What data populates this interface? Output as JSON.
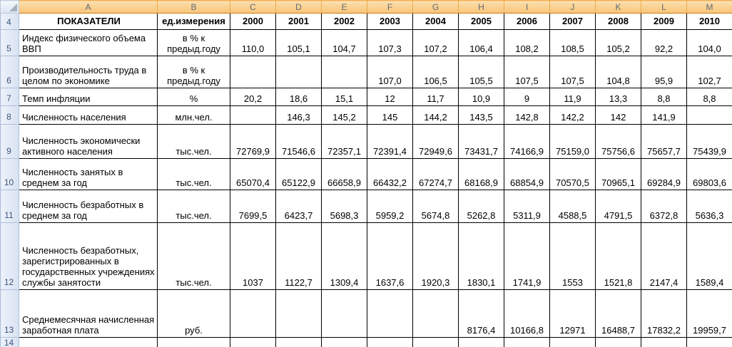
{
  "colors": {
    "column_header_fill": "#F9C578",
    "column_header_fill_light": "#FCDFAE",
    "column_header_text": "#606A75",
    "row_gutter_fill": "#D9E2F2",
    "row_gutter_fill_light": "#EDF2FA",
    "row_gutter_text": "#3D567D",
    "grid_line": "#000000"
  },
  "sheet": {
    "column_letters": [
      "A",
      "B",
      "C",
      "D",
      "E",
      "F",
      "G",
      "H",
      "I",
      "J",
      "K",
      "L",
      "M"
    ],
    "rows": [
      {
        "num": "4",
        "header": true,
        "label": "ПОКАЗАТЕЛИ",
        "unit": "ед.измерения",
        "values": [
          "2000",
          "2001",
          "2002",
          "2003",
          "2004",
          "2005",
          "2006",
          "2007",
          "2008",
          "2009",
          "2010"
        ]
      },
      {
        "num": "5",
        "label": "Индекс физического объема ВВП",
        "unit": "в % к предыд.году",
        "values": [
          "110,0",
          "105,1",
          "104,7",
          "107,3",
          "107,2",
          "106,4",
          "108,2",
          "108,5",
          "105,2",
          "92,2",
          "104,0"
        ]
      },
      {
        "num": "6",
        "label": "Производительность труда в целом по экономике",
        "unit": "в % к предыд.году",
        "values": [
          "",
          "",
          "",
          "107,0",
          "106,5",
          "105,5",
          "107,5",
          "107,5",
          "104,8",
          "95,9",
          "102,7"
        ]
      },
      {
        "num": "7",
        "label": "Темп инфляции",
        "unit": "%",
        "values": [
          "20,2",
          "18,6",
          "15,1",
          "12",
          "11,7",
          "10,9",
          "9",
          "11,9",
          "13,3",
          "8,8",
          "8,8"
        ]
      },
      {
        "num": "8",
        "label": "Численность населения",
        "unit": "млн.чел.",
        "values": [
          "",
          "146,3",
          "145,2",
          "145",
          "144,2",
          "143,5",
          "142,8",
          "142,2",
          "142",
          "141,9",
          ""
        ]
      },
      {
        "num": "9",
        "label": "Численность экономически активного населения",
        "unit": "тыс.чел.",
        "values": [
          "72769,9",
          "71546,6",
          "72357,1",
          "72391,4",
          "72949,6",
          "73431,7",
          "74166,9",
          "75159,0",
          "75756,6",
          "75657,7",
          "75439,9"
        ]
      },
      {
        "num": "10",
        "label": "Численность занятых в среднем за год",
        "unit": "тыс.чел.",
        "values": [
          "65070,4",
          "65122,9",
          "66658,9",
          "66432,2",
          "67274,7",
          "68168,9",
          "68854,9",
          "70570,5",
          "70965,1",
          "69284,9",
          "69803,6"
        ]
      },
      {
        "num": "11",
        "label": "Численность безработных в среднем за год",
        "unit": "тыс.чел.",
        "values": [
          "7699,5",
          "6423,7",
          "5698,3",
          "5959,2",
          "5674,8",
          "5262,8",
          "5311,9",
          "4588,5",
          "4791,5",
          "6372,8",
          "5636,3"
        ]
      },
      {
        "num": "12",
        "label": "Численность безработных, зарегистрированных в государственных учреждениях службы занятости",
        "unit": "тыс.чел.",
        "values": [
          "1037",
          "1122,7",
          "1309,4",
          "1637,6",
          "1920,3",
          "1830,1",
          "1741,9",
          "1553",
          "1521,8",
          "2147,4",
          "1589,4"
        ]
      },
      {
        "num": "13",
        "label": "Среднемесячная начисленная заработная плата",
        "unit": "руб.",
        "values": [
          "",
          "",
          "",
          "",
          "",
          "8176,4",
          "10166,8",
          "12971",
          "16488,7",
          "17832,2",
          "19959,7"
        ]
      },
      {
        "num": "14",
        "label": "",
        "unit": "",
        "values": [
          "",
          "",
          "",
          "",
          "",
          "",
          "",
          "",
          "",
          "",
          ""
        ]
      }
    ]
  }
}
